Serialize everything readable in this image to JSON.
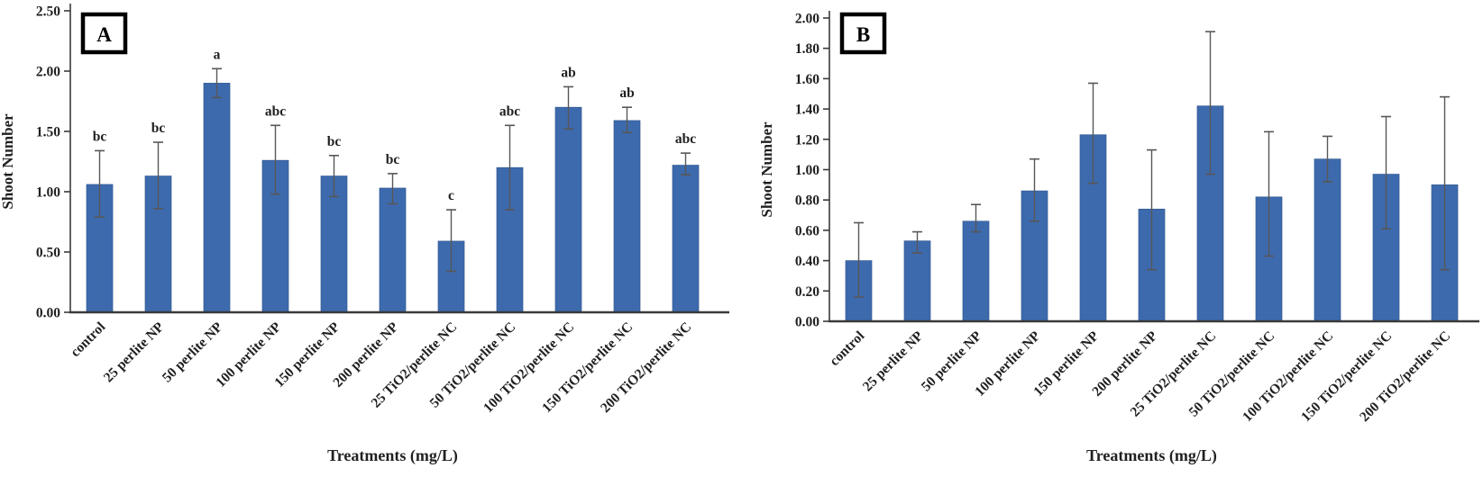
{
  "figure": {
    "background": "#ffffff",
    "bar_color": "#3d6aad",
    "bar_border_color": "#33598f",
    "error_bar_color": "#575757",
    "axis_color": "#3a3a3a",
    "text_color": "#211f1f"
  },
  "chart_data": [
    {
      "type": "bar",
      "panel_label": "A",
      "title": "",
      "ylabel": "Shoot Number",
      "xlabel": "Treatments (mg/L)",
      "ylim": [
        0,
        2.5
      ],
      "ytick_step": 0.5,
      "ytick_labels": [
        "0.00",
        "0.50",
        "1.00",
        "1.50",
        "2.00",
        "2.50"
      ],
      "grid": false,
      "legend_position": "none",
      "categories": [
        "control",
        "25 perlite NP",
        "50 perlite NP",
        "100 perlite NP",
        "150 perlite NP",
        "200 perlite NP",
        "25 TiO2/perlite NC",
        "50 TiO2/perlite NC",
        "100 TiO2/perlite NC",
        "150 TiO2/perlite NC",
        "200 TiO2/perlite NC"
      ],
      "values": [
        1.06,
        1.13,
        1.9,
        1.26,
        1.13,
        1.03,
        0.59,
        1.2,
        1.7,
        1.59,
        1.22
      ],
      "error_low": [
        0.79,
        0.86,
        1.78,
        0.98,
        0.96,
        0.9,
        0.34,
        0.85,
        1.52,
        1.49,
        1.14
      ],
      "error_high": [
        1.34,
        1.41,
        2.02,
        1.55,
        1.3,
        1.15,
        0.85,
        1.55,
        1.87,
        1.7,
        1.32
      ],
      "significance_letters": [
        "bc",
        "bc",
        "a",
        "abc",
        "bc",
        "bc",
        "c",
        "abc",
        "ab",
        "ab",
        "abc"
      ]
    },
    {
      "type": "bar",
      "panel_label": "B",
      "title": "",
      "ylabel": "Shoot Number",
      "xlabel": "Treatments (mg/L)",
      "ylim": [
        0,
        2.0
      ],
      "ytick_step": 0.2,
      "ytick_labels": [
        "0.00",
        "0.20",
        "0.40",
        "0.60",
        "0.80",
        "1.00",
        "1.20",
        "1.40",
        "1.60",
        "1.80",
        "2.00"
      ],
      "grid": false,
      "legend_position": "none",
      "categories": [
        "control",
        "25 perlite NP",
        "50 perlite NP",
        "100 perlite NP",
        "150 perlite NP",
        "200 perlite NP",
        "25 TiO2/perlite NC",
        "50 TiO2/perlite NC",
        "100 TiO2/perlite NC",
        "150 TiO2/perlite NC",
        "200 TiO2/perlite NC"
      ],
      "values": [
        0.4,
        0.53,
        0.66,
        0.86,
        1.23,
        0.74,
        1.42,
        0.82,
        1.07,
        0.97,
        0.9
      ],
      "error_low": [
        0.16,
        0.45,
        0.59,
        0.66,
        0.91,
        0.34,
        0.97,
        0.43,
        0.92,
        0.61,
        0.34
      ],
      "error_high": [
        0.65,
        0.59,
        0.77,
        1.07,
        1.57,
        1.13,
        1.91,
        1.25,
        1.22,
        1.35,
        1.48
      ],
      "significance_letters": []
    }
  ]
}
